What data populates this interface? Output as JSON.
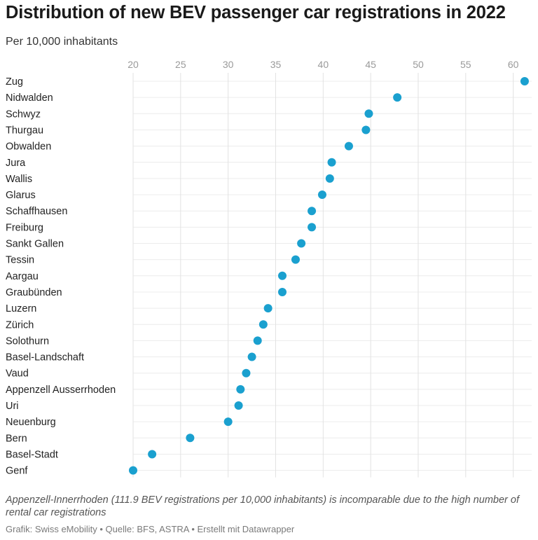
{
  "title": "Distribution of new BEV passenger car registrations in 2022",
  "subtitle": "Per 10,000 inhabitants",
  "note": "Appenzell-Innerrhoden (111.9 BEV registrations per 10,000 inhabitants) is incomparable due to the high number of rental car registrations",
  "source": "Grafik: Swiss eMobility • Quelle: BFS, ASTRA • Erstellt mit Datawrapper",
  "colors": {
    "dot": "#1aa0cf",
    "grid": "#e2e2e2",
    "tick": "#9a9a9a"
  },
  "chart_data": {
    "type": "scatter",
    "title": "Distribution of new BEV passenger car registrations in 2022",
    "subtitle": "Per 10,000 inhabitants",
    "xlabel": "",
    "ylabel": "",
    "xlim": [
      20,
      61.5
    ],
    "xticks": [
      20,
      25,
      30,
      35,
      40,
      45,
      50,
      55,
      60
    ],
    "grid": true,
    "categories": [
      "Zug",
      "Nidwalden",
      "Schwyz",
      "Thurgau",
      "Obwalden",
      "Jura",
      "Wallis",
      "Glarus",
      "Schaffhausen",
      "Freiburg",
      "Sankt Gallen",
      "Tessin",
      "Aargau",
      "Graubünden",
      "Luzern",
      "Zürich",
      "Solothurn",
      "Basel-Landschaft",
      "Vaud",
      "Appenzell Ausserrhoden",
      "Uri",
      "Neuenburg",
      "Bern",
      "Basel-Stadt",
      "Genf"
    ],
    "values": [
      61.2,
      47.8,
      44.8,
      44.5,
      42.7,
      40.9,
      40.7,
      39.9,
      38.8,
      38.8,
      37.7,
      37.1,
      35.7,
      35.7,
      34.2,
      33.7,
      33.1,
      32.5,
      31.9,
      31.3,
      31.1,
      30.0,
      26.0,
      22.0,
      20.0
    ]
  }
}
